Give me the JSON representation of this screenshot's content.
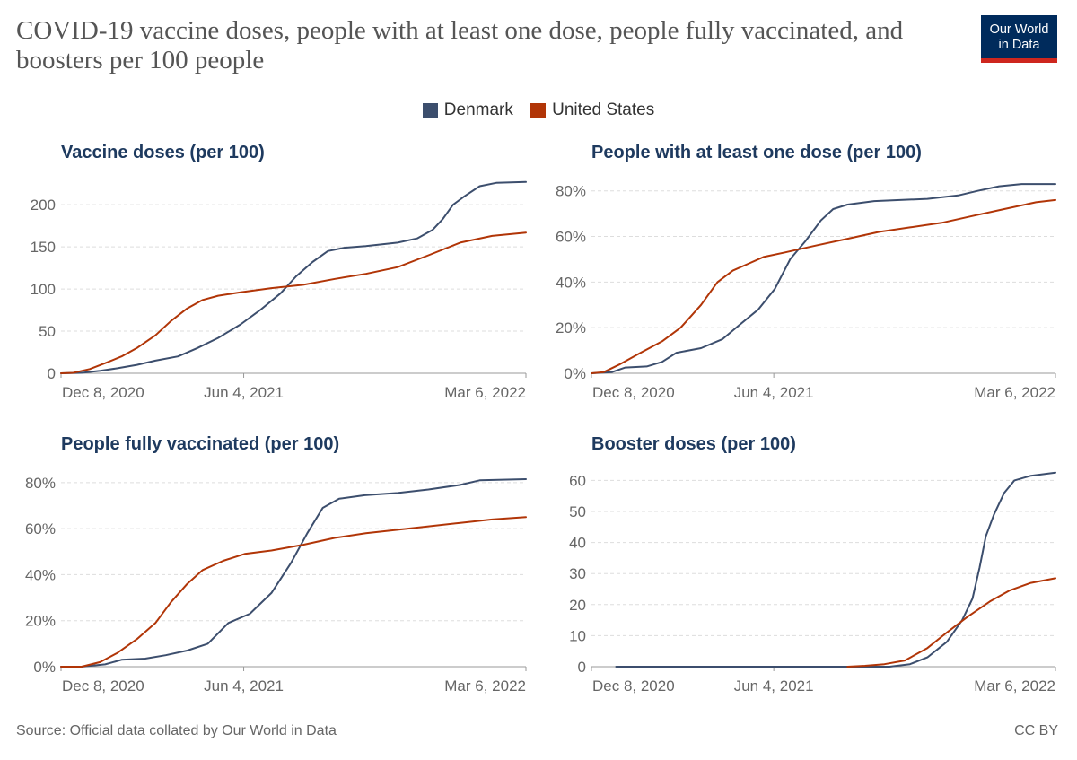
{
  "header": {
    "title": "COVID-19 vaccine doses, people with at least one dose, people fully vaccinated, and boosters per 100 people",
    "logo_line1": "Our World",
    "logo_line2": "in Data"
  },
  "legend": {
    "items": [
      {
        "label": "Denmark",
        "color": "#3c4e6d"
      },
      {
        "label": "United States",
        "color": "#b13507"
      }
    ]
  },
  "footer": {
    "source": "Source: Official data collated by Our World in Data",
    "license": "CC BY"
  },
  "chart_data": [
    {
      "type": "line",
      "title": "Vaccine doses (per 100)",
      "xlabel": "",
      "ylabel": "",
      "x_ticks": [
        "Dec 8, 2020",
        "Jun 4, 2021",
        "Mar 6, 2022"
      ],
      "y_ticks": [
        "0",
        "50",
        "100",
        "150",
        "200"
      ],
      "xlim": [
        "2020-12-08",
        "2022-03-06"
      ],
      "ylim": [
        0,
        230
      ],
      "grid": "horizontal",
      "series": [
        {
          "name": "Denmark",
          "color": "#3c4e6d",
          "points": [
            [
              "2020-12-08",
              0
            ],
            [
              "2020-12-28",
              0.5
            ],
            [
              "2021-01-15",
              3
            ],
            [
              "2021-02-01",
              6
            ],
            [
              "2021-02-20",
              10
            ],
            [
              "2021-03-10",
              15
            ],
            [
              "2021-04-01",
              20
            ],
            [
              "2021-04-20",
              30
            ],
            [
              "2021-05-10",
              42
            ],
            [
              "2021-06-01",
              58
            ],
            [
              "2021-06-20",
              75
            ],
            [
              "2021-07-10",
              95
            ],
            [
              "2021-07-25",
              115
            ],
            [
              "2021-08-10",
              132
            ],
            [
              "2021-08-25",
              145
            ],
            [
              "2021-09-10",
              149
            ],
            [
              "2021-10-01",
              151
            ],
            [
              "2021-11-01",
              155
            ],
            [
              "2021-11-20",
              160
            ],
            [
              "2021-12-05",
              170
            ],
            [
              "2021-12-15",
              183
            ],
            [
              "2021-12-25",
              200
            ],
            [
              "2022-01-05",
              210
            ],
            [
              "2022-01-20",
              222
            ],
            [
              "2022-02-05",
              226
            ],
            [
              "2022-03-06",
              227
            ]
          ]
        },
        {
          "name": "United States",
          "color": "#b13507",
          "points": [
            [
              "2020-12-08",
              0
            ],
            [
              "2020-12-20",
              0.5
            ],
            [
              "2021-01-05",
              5
            ],
            [
              "2021-01-20",
              12
            ],
            [
              "2021-02-05",
              20
            ],
            [
              "2021-02-20",
              30
            ],
            [
              "2021-03-10",
              45
            ],
            [
              "2021-03-25",
              62
            ],
            [
              "2021-04-10",
              77
            ],
            [
              "2021-04-25",
              87
            ],
            [
              "2021-05-10",
              92
            ],
            [
              "2021-06-01",
              96
            ],
            [
              "2021-07-01",
              101
            ],
            [
              "2021-08-01",
              105
            ],
            [
              "2021-09-01",
              112
            ],
            [
              "2021-10-01",
              118
            ],
            [
              "2021-11-01",
              126
            ],
            [
              "2021-12-01",
              140
            ],
            [
              "2022-01-01",
              155
            ],
            [
              "2022-02-01",
              163
            ],
            [
              "2022-03-06",
              167
            ]
          ]
        }
      ]
    },
    {
      "type": "line",
      "title": "People with at least one dose (per 100)",
      "xlabel": "",
      "ylabel": "",
      "x_ticks": [
        "Dec 8, 2020",
        "Jun 4, 2021",
        "Mar 6, 2022"
      ],
      "y_ticks": [
        "0%",
        "20%",
        "40%",
        "60%",
        "80%"
      ],
      "xlim": [
        "2020-12-08",
        "2022-03-06"
      ],
      "ylim": [
        0,
        85
      ],
      "grid": "horizontal",
      "series": [
        {
          "name": "Denmark",
          "color": "#3c4e6d",
          "points": [
            [
              "2020-12-08",
              0
            ],
            [
              "2020-12-28",
              0.5
            ],
            [
              "2021-01-10",
              2.5
            ],
            [
              "2021-01-31",
              3
            ],
            [
              "2021-02-15",
              5
            ],
            [
              "2021-03-01",
              9
            ],
            [
              "2021-03-25",
              11
            ],
            [
              "2021-04-15",
              15
            ],
            [
              "2021-05-01",
              21
            ],
            [
              "2021-05-20",
              28
            ],
            [
              "2021-06-05",
              37
            ],
            [
              "2021-06-20",
              50
            ],
            [
              "2021-07-05",
              58
            ],
            [
              "2021-07-20",
              67
            ],
            [
              "2021-08-01",
              72
            ],
            [
              "2021-08-15",
              74
            ],
            [
              "2021-09-10",
              75.5
            ],
            [
              "2021-11-01",
              76.5
            ],
            [
              "2021-12-01",
              78
            ],
            [
              "2021-12-20",
              80
            ],
            [
              "2022-01-10",
              82
            ],
            [
              "2022-02-01",
              83
            ],
            [
              "2022-03-06",
              83
            ]
          ]
        },
        {
          "name": "United States",
          "color": "#b13507",
          "points": [
            [
              "2020-12-08",
              0
            ],
            [
              "2020-12-20",
              0.5
            ],
            [
              "2021-01-05",
              4
            ],
            [
              "2021-01-25",
              9
            ],
            [
              "2021-02-15",
              14
            ],
            [
              "2021-03-05",
              20
            ],
            [
              "2021-03-25",
              30
            ],
            [
              "2021-04-10",
              40
            ],
            [
              "2021-04-25",
              45
            ],
            [
              "2021-05-10",
              48
            ],
            [
              "2021-05-25",
              51
            ],
            [
              "2021-06-15",
              53
            ],
            [
              "2021-07-15",
              56
            ],
            [
              "2021-08-15",
              59
            ],
            [
              "2021-09-15",
              62
            ],
            [
              "2021-10-15",
              64
            ],
            [
              "2021-11-15",
              66
            ],
            [
              "2021-12-15",
              69
            ],
            [
              "2022-01-15",
              72
            ],
            [
              "2022-02-15",
              75
            ],
            [
              "2022-03-06",
              76
            ]
          ]
        }
      ]
    },
    {
      "type": "line",
      "title": "People fully vaccinated (per 100)",
      "xlabel": "",
      "ylabel": "",
      "x_ticks": [
        "Dec 8, 2020",
        "Jun 4, 2021",
        "Mar 6, 2022"
      ],
      "y_ticks": [
        "0%",
        "20%",
        "40%",
        "60%",
        "80%"
      ],
      "xlim": [
        "2020-12-08",
        "2022-03-06"
      ],
      "ylim": [
        0,
        85
      ],
      "grid": "horizontal",
      "series": [
        {
          "name": "Denmark",
          "color": "#3c4e6d",
          "points": [
            [
              "2020-12-08",
              0
            ],
            [
              "2020-12-28",
              0
            ],
            [
              "2021-01-20",
              1
            ],
            [
              "2021-02-05",
              3
            ],
            [
              "2021-02-28",
              3.5
            ],
            [
              "2021-03-20",
              5
            ],
            [
              "2021-04-10",
              7
            ],
            [
              "2021-04-30",
              10
            ],
            [
              "2021-05-20",
              19
            ],
            [
              "2021-06-10",
              23
            ],
            [
              "2021-07-01",
              32
            ],
            [
              "2021-07-20",
              45
            ],
            [
              "2021-08-05",
              58
            ],
            [
              "2021-08-20",
              69
            ],
            [
              "2021-09-05",
              73
            ],
            [
              "2021-09-30",
              74.5
            ],
            [
              "2021-11-01",
              75.5
            ],
            [
              "2021-12-01",
              77
            ],
            [
              "2022-01-01",
              79
            ],
            [
              "2022-01-20",
              81
            ],
            [
              "2022-03-06",
              81.5
            ]
          ]
        },
        {
          "name": "United States",
          "color": "#b13507",
          "points": [
            [
              "2020-12-08",
              0
            ],
            [
              "2020-12-28",
              0
            ],
            [
              "2021-01-15",
              2
            ],
            [
              "2021-02-01",
              6
            ],
            [
              "2021-02-20",
              12
            ],
            [
              "2021-03-10",
              19
            ],
            [
              "2021-03-25",
              28
            ],
            [
              "2021-04-10",
              36
            ],
            [
              "2021-04-25",
              42
            ],
            [
              "2021-05-15",
              46
            ],
            [
              "2021-06-05",
              49
            ],
            [
              "2021-07-01",
              50.5
            ],
            [
              "2021-08-01",
              53
            ],
            [
              "2021-09-01",
              56
            ],
            [
              "2021-10-01",
              58
            ],
            [
              "2021-11-01",
              59.5
            ],
            [
              "2021-12-01",
              61
            ],
            [
              "2022-01-01",
              62.5
            ],
            [
              "2022-02-01",
              64
            ],
            [
              "2022-03-06",
              65
            ]
          ]
        }
      ]
    },
    {
      "type": "line",
      "title": "Booster doses (per 100)",
      "xlabel": "",
      "ylabel": "",
      "x_ticks": [
        "Dec 8, 2020",
        "Jun 4, 2021",
        "Mar 6, 2022"
      ],
      "y_ticks": [
        "0",
        "10",
        "20",
        "30",
        "40",
        "50",
        "60"
      ],
      "xlim": [
        "2020-12-08",
        "2022-03-06"
      ],
      "ylim": [
        0,
        63
      ],
      "grid": "horizontal",
      "series": [
        {
          "name": "Denmark",
          "color": "#3c4e6d",
          "points": [
            [
              "2021-01-01",
              0
            ],
            [
              "2021-09-01",
              0
            ],
            [
              "2021-09-25",
              0
            ],
            [
              "2021-10-15",
              0.8
            ],
            [
              "2021-11-01",
              3
            ],
            [
              "2021-11-20",
              8
            ],
            [
              "2021-12-05",
              15
            ],
            [
              "2021-12-15",
              22
            ],
            [
              "2021-12-22",
              32
            ],
            [
              "2021-12-28",
              42
            ],
            [
              "2022-01-05",
              49
            ],
            [
              "2022-01-15",
              56
            ],
            [
              "2022-01-25",
              60
            ],
            [
              "2022-02-10",
              61.5
            ],
            [
              "2022-03-06",
              62.5
            ]
          ]
        },
        {
          "name": "United States",
          "color": "#b13507",
          "points": [
            [
              "2021-08-15",
              0
            ],
            [
              "2021-09-01",
              0.3
            ],
            [
              "2021-09-20",
              0.8
            ],
            [
              "2021-10-10",
              2
            ],
            [
              "2021-11-01",
              6
            ],
            [
              "2021-11-20",
              11
            ],
            [
              "2021-12-10",
              16
            ],
            [
              "2022-01-01",
              21
            ],
            [
              "2022-01-20",
              24.5
            ],
            [
              "2022-02-10",
              27
            ],
            [
              "2022-03-06",
              28.5
            ]
          ]
        }
      ]
    }
  ]
}
